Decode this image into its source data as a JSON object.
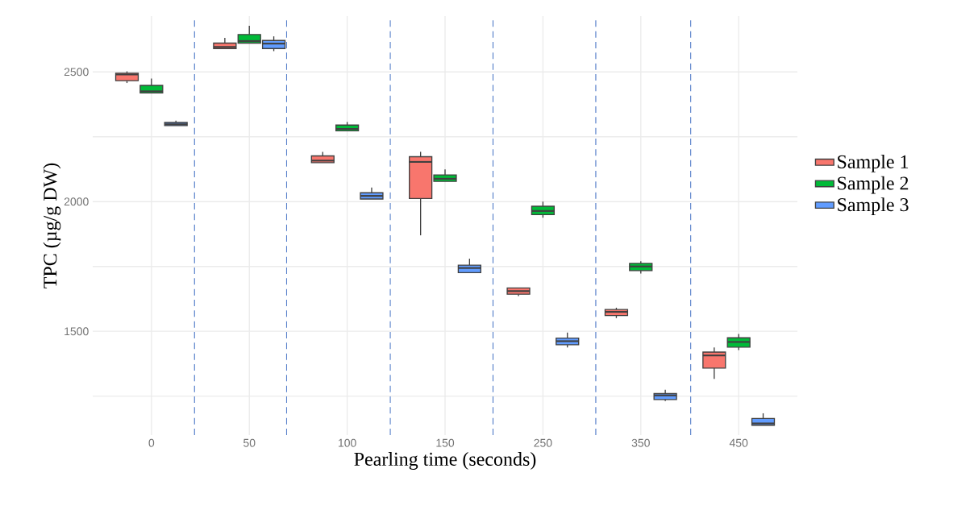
{
  "chart_data": {
    "type": "box",
    "xlabel": "Pearling time (seconds)",
    "ylabel": "TPC (µg/g DW)",
    "categories": [
      "0",
      "50",
      "100",
      "150",
      "250",
      "350",
      "450"
    ],
    "series": [
      {
        "name": "Sample 1",
        "color": "#f8766d",
        "boxes": [
          {
            "low": 2457,
            "q1": 2466,
            "median": 2490,
            "q3": 2495,
            "high": 2502
          },
          {
            "low": 2590,
            "q1": 2590,
            "median": 2596,
            "q3": 2611,
            "high": 2631
          },
          {
            "low": 2150,
            "q1": 2150,
            "median": 2158,
            "q3": 2176,
            "high": 2192
          },
          {
            "low": 1870,
            "q1": 2012,
            "median": 2153,
            "q3": 2173,
            "high": 2192
          },
          {
            "low": 1636,
            "q1": 1643,
            "median": 1655,
            "q3": 1667,
            "high": 1667
          },
          {
            "low": 1551,
            "q1": 1561,
            "median": 1575,
            "q3": 1584,
            "high": 1591
          },
          {
            "low": 1317,
            "q1": 1358,
            "median": 1407,
            "q3": 1420,
            "high": 1438
          }
        ]
      },
      {
        "name": "Sample 2",
        "color": "#00ba38",
        "boxes": [
          {
            "low": 2419,
            "q1": 2419,
            "median": 2425,
            "q3": 2448,
            "high": 2474
          },
          {
            "low": 2611,
            "q1": 2611,
            "median": 2619,
            "q3": 2644,
            "high": 2678
          },
          {
            "low": 2273,
            "q1": 2273,
            "median": 2280,
            "q3": 2295,
            "high": 2307
          },
          {
            "low": 2078,
            "q1": 2078,
            "median": 2088,
            "q3": 2103,
            "high": 2124
          },
          {
            "low": 1938,
            "q1": 1950,
            "median": 1964,
            "q3": 1982,
            "high": 2000
          },
          {
            "low": 1723,
            "q1": 1734,
            "median": 1750,
            "q3": 1762,
            "high": 1770
          },
          {
            "low": 1428,
            "q1": 1439,
            "median": 1459,
            "q3": 1475,
            "high": 1490
          }
        ]
      },
      {
        "name": "Sample 3",
        "color": "#619cff",
        "boxes": [
          {
            "low": 2293,
            "q1": 2293,
            "median": 2298,
            "q3": 2305,
            "high": 2312
          },
          {
            "low": 2580,
            "q1": 2590,
            "median": 2609,
            "q3": 2621,
            "high": 2637
          },
          {
            "low": 2010,
            "q1": 2010,
            "median": 2022,
            "q3": 2034,
            "high": 2054
          },
          {
            "low": 1726,
            "q1": 1726,
            "median": 1744,
            "q3": 1755,
            "high": 1780
          },
          {
            "low": 1438,
            "q1": 1448,
            "median": 1462,
            "q3": 1474,
            "high": 1495
          },
          {
            "low": 1231,
            "q1": 1237,
            "median": 1253,
            "q3": 1260,
            "high": 1275
          },
          {
            "low": 1138,
            "q1": 1138,
            "median": 1145,
            "q3": 1164,
            "high": 1184
          }
        ]
      }
    ],
    "ylim": [
      1100,
      2715
    ],
    "yticks": [
      {
        "value": 1250,
        "label": null
      },
      1500,
      {
        "value": 1750,
        "label": null
      },
      2000,
      {
        "value": 2250,
        "label": null
      },
      2500
    ],
    "grid": true,
    "legend": "right"
  }
}
